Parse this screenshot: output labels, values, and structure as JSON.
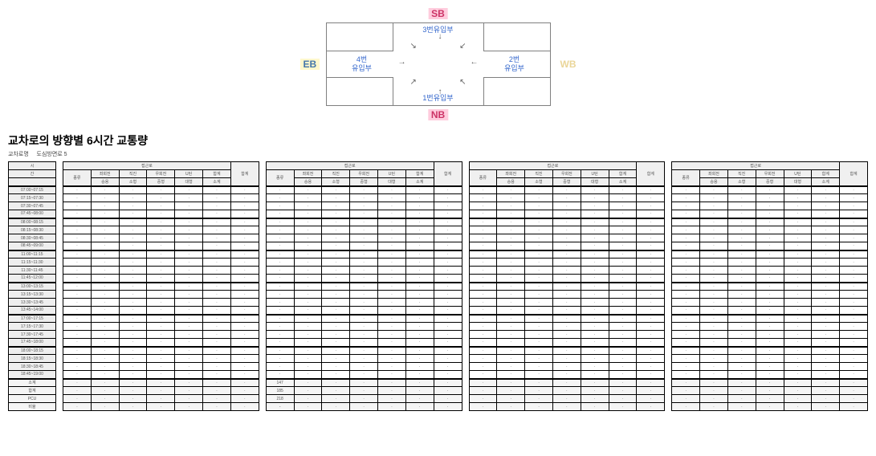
{
  "diagram": {
    "sb": "SB",
    "nb": "NB",
    "eb": "EB",
    "wb": "WB",
    "approach_top": "3번유입부",
    "approach_bottom": "1번유입부",
    "approach_left_line1": "4번",
    "approach_left_line2": "유입부",
    "approach_right_line1": "2번",
    "approach_right_line2": "유입부"
  },
  "title": "교차로의 방향별 6시간 교통량",
  "subtitle_label": "교차로명",
  "subtitle_value": "도심방면로 5",
  "time_header_top": "시",
  "time_header_bot": "간",
  "time_rows": [
    "07:00~07:15",
    "07:15~07:30",
    "07:30~07:45",
    "07:45~08:00",
    "08:00~08:15",
    "08:15~08:30",
    "08:30~08:45",
    "08:45~09:00",
    "11:00~11:15",
    "11:15~11:30",
    "11:30~11:45",
    "11:45~12:00",
    "13:00~13:15",
    "13:15~13:30",
    "13:30~13:45",
    "13:45~14:00",
    "17:00~17:15",
    "17:15~17:30",
    "17:30~17:45",
    "17:45~18:00",
    "18:00~18:15",
    "18:15~18:30",
    "18:30~18:45",
    "18:45~19:00"
  ],
  "summary_labels": [
    "소계",
    "합계",
    "PCU",
    "비율"
  ],
  "dir_headers": [
    "접근로",
    "접근로",
    "접근로",
    "접근로"
  ],
  "sub_headers_left": "종류",
  "sub_group_labels": [
    "좌회전",
    "직진",
    "우회전",
    "U턴",
    "합계"
  ],
  "veh_types": [
    "승용",
    "소형",
    "중형",
    "대형",
    "소계"
  ],
  "right_col": "합계",
  "cell_placeholder": "·",
  "summary_vals_block": [
    "147",
    "185",
    "218",
    "-"
  ],
  "colors": {
    "background": "#ffffff",
    "border": "#000000",
    "grid_light": "#808080",
    "header_bg": "#f0f0f0",
    "time_bg": "#eeeeee",
    "sb_nb_color": "#cc3366",
    "sb_nb_bg": "#ffccdd",
    "eb_color": "#4477aa",
    "eb_bg": "#fff8cc",
    "approach_text": "#3366cc"
  }
}
